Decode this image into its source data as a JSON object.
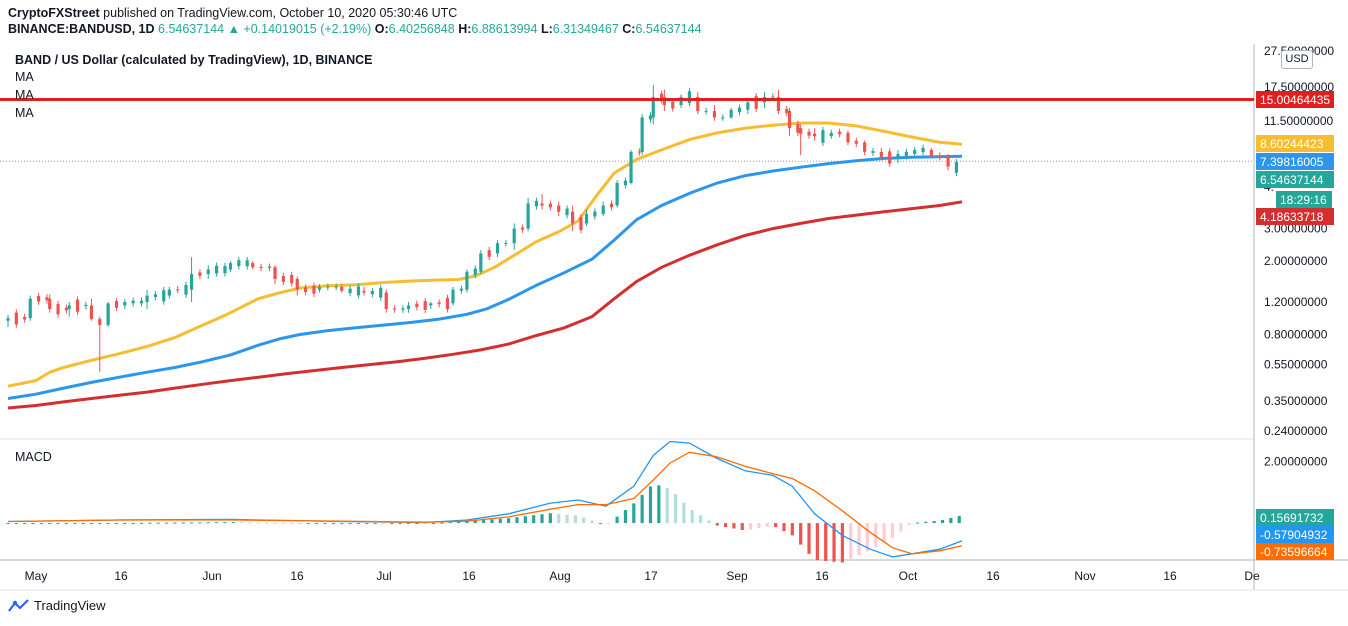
{
  "header": {
    "publisher": "CryptoFXStreet",
    "published_text": "published on TradingView.com, October 10, 2020 05:30:46 UTC",
    "symbol": "BINANCE:BANDUSD, 1D",
    "price": "6.54637144",
    "change": "▲ +0.14019015 (+2.19%)",
    "open_label": "O:",
    "open": "6.40256848",
    "high_label": "H:",
    "high": "6.88613994",
    "low_label": "L:",
    "low": "6.31349467",
    "close_label": "C:",
    "close": "6.54637144"
  },
  "chart_title": "BAND / US Dollar (calculated by TradingView), 1D, BINANCE",
  "indicators": {
    "ma1": "MA",
    "ma2": "MA",
    "ma3": "MA",
    "macd": "MACD"
  },
  "currency": "USD",
  "footer": {
    "brand": "TradingView"
  },
  "colors": {
    "up": "#26a69a",
    "down": "#ef5350",
    "ma50": "#f6bd30",
    "ma100": "#2c96ec",
    "ma200": "#d32f2f",
    "resistance": "#e01f1f",
    "macd": "#2196f3",
    "signal": "#ff6d00"
  },
  "chart_data": [
    {
      "type": "candlestick",
      "title": "BAND / US Dollar (calculated by TradingView), 1D, BINANCE",
      "y_scale": "log",
      "ylim": [
        0.22,
        30
      ],
      "y_ticks": [
        {
          "value": 27.5,
          "label": "27.50000000"
        },
        {
          "value": 17.5,
          "label": "17.50000000"
        },
        {
          "value": 11.5,
          "label": "11.50000000"
        },
        {
          "value": 3.0,
          "label": "3.00000000"
        },
        {
          "value": 2.0,
          "label": "2.00000000"
        },
        {
          "value": 1.2,
          "label": "1.20000000"
        },
        {
          "value": 0.8,
          "label": "0.80000000"
        },
        {
          "value": 0.55,
          "label": "0.55000000"
        },
        {
          "value": 0.35,
          "label": "0.35000000"
        },
        {
          "value": 0.24,
          "label": "0.24000000"
        }
      ],
      "x_ticks": [
        "May",
        "16",
        "Jun",
        "16",
        "Jul",
        "16",
        "Aug",
        "17",
        "Sep",
        "16",
        "Oct",
        "16",
        "Nov",
        "16",
        "De"
      ],
      "resistance_level": 15.00464435,
      "price_labels": [
        {
          "name": "resistance",
          "text": "15.00464435",
          "value": 15.00464435,
          "color": "#e01f1f"
        },
        {
          "name": "ma50",
          "text": "8.60244423",
          "value": 8.60244423,
          "color": "#f6bd30"
        },
        {
          "name": "ma100",
          "text": "7.39816005",
          "value": 7.39816005,
          "color": "#2c96ec"
        },
        {
          "name": "last-price",
          "text": "6.54637144",
          "value": 6.54637144,
          "color": "#26a69a"
        },
        {
          "name": "countdown",
          "text": "18:29:16",
          "value": 5.4,
          "color": "#26a69a"
        },
        {
          "name": "ma200",
          "text": "4.18633718",
          "value": 4.18633718,
          "color": "#d32f2f"
        }
      ],
      "hidden_tick_fragment": "4.",
      "series": [
        {
          "name": "MA 50",
          "color": "#f6bd30",
          "points": [
            [
              0,
              0.42
            ],
            [
              10,
              0.45
            ],
            [
              15,
              0.5
            ],
            [
              20,
              0.53
            ],
            [
              30,
              0.58
            ],
            [
              40,
              0.63
            ],
            [
              50,
              0.69
            ],
            [
              60,
              0.77
            ],
            [
              70,
              0.9
            ],
            [
              75,
              0.97
            ],
            [
              80,
              1.05
            ],
            [
              90,
              1.25
            ],
            [
              98,
              1.35
            ],
            [
              105,
              1.43
            ],
            [
              115,
              1.47
            ],
            [
              125,
              1.49
            ],
            [
              135,
              1.53
            ],
            [
              145,
              1.56
            ],
            [
              155,
              1.58
            ],
            [
              162,
              1.59
            ],
            [
              168,
              1.66
            ],
            [
              175,
              1.85
            ],
            [
              182,
              2.15
            ],
            [
              190,
              2.55
            ],
            [
              198,
              2.88
            ],
            [
              205,
              3.3
            ],
            [
              212,
              4.6
            ],
            [
              218,
              6.0
            ],
            [
              226,
              7.1
            ],
            [
              235,
              8.0
            ],
            [
              245,
              9.1
            ],
            [
              255,
              9.9
            ],
            [
              265,
              10.5
            ],
            [
              275,
              10.9
            ],
            [
              285,
              11.2
            ],
            [
              295,
              11.2
            ],
            [
              305,
              10.8
            ],
            [
              315,
              10.1
            ],
            [
              325,
              9.4
            ],
            [
              335,
              8.8
            ],
            [
              343,
              8.6
            ]
          ]
        },
        {
          "name": "MA 100",
          "color": "#2c96ec",
          "points": [
            [
              0,
              0.36
            ],
            [
              10,
              0.38
            ],
            [
              20,
              0.41
            ],
            [
              30,
              0.44
            ],
            [
              40,
              0.47
            ],
            [
              50,
              0.5
            ],
            [
              60,
              0.53
            ],
            [
              70,
              0.57
            ],
            [
              80,
              0.62
            ],
            [
              90,
              0.7
            ],
            [
              98,
              0.76
            ],
            [
              105,
              0.8
            ],
            [
              115,
              0.84
            ],
            [
              125,
              0.87
            ],
            [
              135,
              0.9
            ],
            [
              145,
              0.93
            ],
            [
              155,
              0.97
            ],
            [
              165,
              1.03
            ],
            [
              172,
              1.1
            ],
            [
              180,
              1.24
            ],
            [
              190,
              1.48
            ],
            [
              200,
              1.73
            ],
            [
              210,
              2.05
            ],
            [
              218,
              2.6
            ],
            [
              226,
              3.35
            ],
            [
              235,
              4.0
            ],
            [
              245,
              4.65
            ],
            [
              255,
              5.3
            ],
            [
              265,
              5.8
            ],
            [
              275,
              6.15
            ],
            [
              285,
              6.45
            ],
            [
              295,
              6.75
            ],
            [
              305,
              7.0
            ],
            [
              315,
              7.2
            ],
            [
              325,
              7.3
            ],
            [
              343,
              7.4
            ]
          ]
        },
        {
          "name": "MA 200",
          "color": "#d32f2f",
          "points": [
            [
              0,
              0.32
            ],
            [
              10,
              0.33
            ],
            [
              20,
              0.345
            ],
            [
              30,
              0.36
            ],
            [
              40,
              0.375
            ],
            [
              50,
              0.39
            ],
            [
              60,
              0.41
            ],
            [
              70,
              0.43
            ],
            [
              80,
              0.45
            ],
            [
              90,
              0.47
            ],
            [
              100,
              0.49
            ],
            [
              110,
              0.51
            ],
            [
              120,
              0.53
            ],
            [
              130,
              0.55
            ],
            [
              140,
              0.57
            ],
            [
              150,
              0.595
            ],
            [
              160,
              0.625
            ],
            [
              170,
              0.66
            ],
            [
              180,
              0.71
            ],
            [
              190,
              0.79
            ],
            [
              200,
              0.87
            ],
            [
              210,
              1.0
            ],
            [
              218,
              1.25
            ],
            [
              226,
              1.55
            ],
            [
              235,
              1.85
            ],
            [
              245,
              2.15
            ],
            [
              255,
              2.45
            ],
            [
              265,
              2.75
            ],
            [
              275,
              3.0
            ],
            [
              285,
              3.2
            ],
            [
              295,
              3.4
            ],
            [
              305,
              3.55
            ],
            [
              315,
              3.7
            ],
            [
              325,
              3.85
            ],
            [
              335,
              4.0
            ],
            [
              343,
              4.19
            ]
          ]
        }
      ],
      "candles_ohlc": [
        [
          0,
          0.95,
          1.02,
          0.88,
          0.98
        ],
        [
          8,
          0.98,
          1.3,
          0.95,
          1.25
        ],
        [
          15,
          1.25,
          1.32,
          1.05,
          1.1
        ],
        [
          22,
          1.1,
          1.2,
          1.0,
          1.15
        ],
        [
          30,
          1.15,
          1.25,
          0.95,
          0.97
        ],
        [
          33,
          0.97,
          1.0,
          0.5,
          0.9
        ],
        [
          36,
          0.9,
          1.2,
          0.88,
          1.18
        ],
        [
          42,
          1.15,
          1.25,
          1.1,
          1.2
        ],
        [
          50,
          1.2,
          1.4,
          1.1,
          1.3
        ],
        [
          58,
          1.3,
          1.45,
          1.25,
          1.4
        ],
        [
          66,
          1.4,
          2.1,
          1.2,
          1.7
        ],
        [
          72,
          1.7,
          1.9,
          1.6,
          1.8
        ],
        [
          80,
          1.8,
          2.0,
          1.75,
          1.95
        ],
        [
          88,
          1.95,
          2.0,
          1.8,
          1.85
        ],
        [
          96,
          1.85,
          1.9,
          1.5,
          1.6
        ],
        [
          104,
          1.6,
          1.65,
          1.3,
          1.4
        ],
        [
          112,
          1.4,
          1.5,
          1.35,
          1.45
        ],
        [
          120,
          1.45,
          1.5,
          1.35,
          1.38
        ],
        [
          128,
          1.38,
          1.45,
          1.3,
          1.35
        ],
        [
          136,
          1.35,
          1.4,
          1.05,
          1.1
        ],
        [
          144,
          1.1,
          1.2,
          1.05,
          1.15
        ],
        [
          152,
          1.15,
          1.2,
          1.1,
          1.18
        ],
        [
          160,
          1.18,
          1.45,
          1.15,
          1.4
        ],
        [
          165,
          1.4,
          1.8,
          1.35,
          1.75
        ],
        [
          170,
          1.75,
          2.3,
          1.7,
          2.2
        ],
        [
          176,
          2.2,
          2.6,
          2.1,
          2.5
        ],
        [
          182,
          2.5,
          3.2,
          2.3,
          3.0
        ],
        [
          187,
          3.0,
          4.4,
          2.9,
          4.1
        ],
        [
          192,
          4.1,
          4.6,
          3.8,
          4.0
        ],
        [
          198,
          4.0,
          4.2,
          3.5,
          3.7
        ],
        [
          203,
          3.7,
          4.0,
          2.9,
          3.2
        ],
        [
          208,
          3.2,
          3.8,
          3.1,
          3.6
        ],
        [
          214,
          3.6,
          4.2,
          3.5,
          4.0
        ],
        [
          219,
          4.0,
          5.5,
          3.9,
          5.3
        ],
        [
          224,
          5.3,
          8.0,
          5.2,
          7.8
        ],
        [
          228,
          7.8,
          12.5,
          7.5,
          12.0
        ],
        [
          232,
          12.0,
          18.0,
          11.0,
          15.5
        ],
        [
          236,
          15.5,
          17.0,
          13.0,
          14.0
        ],
        [
          242,
          14.0,
          16.0,
          13.5,
          15.5
        ],
        [
          248,
          15.5,
          16.5,
          12.5,
          13.0
        ],
        [
          254,
          13.0,
          14.0,
          11.5,
          12.0
        ],
        [
          260,
          12.0,
          13.5,
          11.8,
          13.2
        ],
        [
          266,
          13.2,
          15.0,
          12.5,
          14.5
        ],
        [
          272,
          14.5,
          16.5,
          13.5,
          15.5
        ],
        [
          277,
          15.5,
          17.0,
          12.5,
          13.0
        ],
        [
          281,
          13.0,
          13.5,
          9.5,
          10.5
        ],
        [
          285,
          10.5,
          11.0,
          7.5,
          9.8
        ],
        [
          290,
          9.8,
          10.5,
          9.0,
          9.5
        ],
        [
          296,
          9.5,
          10.3,
          9.2,
          9.9
        ],
        [
          302,
          9.9,
          10.2,
          8.5,
          8.8
        ],
        [
          308,
          8.8,
          9.0,
          7.5,
          7.8
        ],
        [
          314,
          7.8,
          8.2,
          7.0,
          7.3
        ],
        [
          320,
          7.3,
          8.0,
          6.8,
          7.6
        ],
        [
          326,
          7.6,
          8.3,
          7.4,
          8.0
        ],
        [
          332,
          8.0,
          8.2,
          7.2,
          7.4
        ],
        [
          338,
          7.4,
          7.6,
          6.2,
          6.5
        ],
        [
          343,
          6.4,
          6.9,
          6.3,
          6.55
        ]
      ]
    },
    {
      "type": "macd",
      "title": "MACD",
      "values_labels": [
        {
          "name": "histogram",
          "text": "0.15691732",
          "value": 0.15691732,
          "color": "#26a69a"
        },
        {
          "name": "macd",
          "text": "-0.57904932",
          "value": -0.57904932,
          "color": "#2196f3"
        },
        {
          "name": "signal",
          "text": "-0.73596664",
          "value": -0.73596664,
          "color": "#ff6d00"
        }
      ],
      "y_ticks": [
        {
          "value": 2.0,
          "label": "2.00000000"
        }
      ],
      "ylim": [
        -1.2,
        2.7
      ],
      "macd_line": [
        [
          0,
          0.05
        ],
        [
          40,
          0.1
        ],
        [
          80,
          0.12
        ],
        [
          120,
          0.05
        ],
        [
          150,
          0.02
        ],
        [
          165,
          0.1
        ],
        [
          180,
          0.3
        ],
        [
          195,
          0.65
        ],
        [
          205,
          0.75
        ],
        [
          215,
          0.55
        ],
        [
          225,
          1.2
        ],
        [
          232,
          2.2
        ],
        [
          238,
          2.65
        ],
        [
          245,
          2.6
        ],
        [
          255,
          2.1
        ],
        [
          265,
          1.7
        ],
        [
          275,
          1.55
        ],
        [
          282,
          1.2
        ],
        [
          290,
          0.3
        ],
        [
          300,
          -0.4
        ],
        [
          310,
          -0.85
        ],
        [
          318,
          -1.1
        ],
        [
          325,
          -1.0
        ],
        [
          335,
          -0.85
        ],
        [
          343,
          -0.58
        ]
      ],
      "signal_line": [
        [
          0,
          0.05
        ],
        [
          40,
          0.1
        ],
        [
          80,
          0.1
        ],
        [
          120,
          0.06
        ],
        [
          150,
          0.03
        ],
        [
          165,
          0.06
        ],
        [
          180,
          0.2
        ],
        [
          195,
          0.45
        ],
        [
          205,
          0.6
        ],
        [
          215,
          0.6
        ],
        [
          225,
          0.8
        ],
        [
          232,
          1.4
        ],
        [
          238,
          1.95
        ],
        [
          245,
          2.3
        ],
        [
          255,
          2.15
        ],
        [
          265,
          1.85
        ],
        [
          275,
          1.6
        ],
        [
          282,
          1.45
        ],
        [
          290,
          1.05
        ],
        [
          300,
          0.4
        ],
        [
          310,
          -0.3
        ],
        [
          318,
          -0.8
        ],
        [
          325,
          -1.0
        ],
        [
          335,
          -0.9
        ],
        [
          343,
          -0.74
        ]
      ]
    }
  ]
}
